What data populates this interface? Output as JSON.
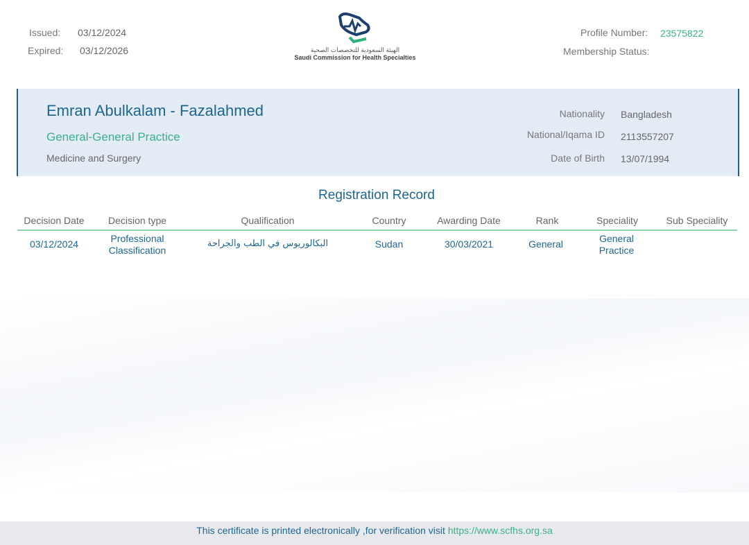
{
  "header": {
    "issued_label": "Issued:",
    "issued": "03/12/2024",
    "expired_label": "Expired:",
    "expired": "03/12/2026",
    "logo_arabic": "الهيئة السعودية للتخصصات الصحية",
    "logo_english": "Saudi Commission for Health Specialties",
    "profile_label": "Profile Number:",
    "profile_number": "23575822",
    "membership_label": "Membership Status:"
  },
  "person": {
    "name": "Emran Abulkalam - Fazalahmed",
    "title": "General-General Practice",
    "field": "Medicine and Surgery",
    "nationality_label": "Nationality",
    "nationality": "Bangladesh",
    "id_label": "National/Iqama ID",
    "id": "2113557207",
    "dob_label": "Date of Birth",
    "dob": "13/07/1994"
  },
  "record": {
    "title": "Registration Record",
    "columns": [
      "Decision Date",
      "Decision type",
      "Qualification",
      "Country",
      "Awarding Date",
      "Rank",
      "Speciality",
      "Sub Speciality"
    ],
    "rows": [
      [
        "03/12/2024",
        "Professional Classification",
        "البكالوريوس في الطب والجراحة",
        "Sudan",
        "30/03/2021",
        "General",
        "General Practice",
        ""
      ]
    ]
  },
  "footer": {
    "text": "This certificate is printed electronically ,for verification visit",
    "link": "https://www.scfhs.org.sa"
  },
  "colors": {
    "accent": "#1e6590",
    "green": "#3cb08a"
  }
}
